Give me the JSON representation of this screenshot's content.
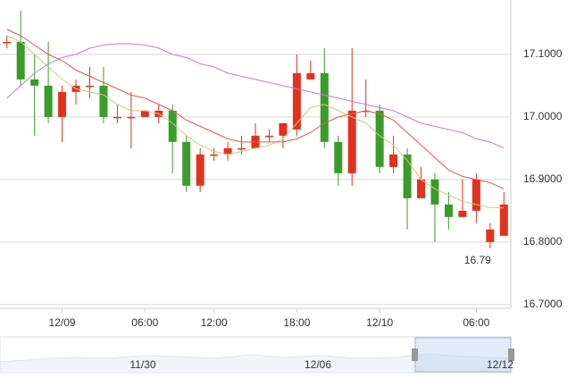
{
  "chart_data": {
    "type": "candlestick",
    "categories": [
      null,
      null,
      null,
      null,
      "12/09",
      null,
      null,
      null,
      null,
      null,
      "06:00",
      null,
      null,
      null,
      null,
      "12:00",
      null,
      null,
      null,
      null,
      null,
      "18:00",
      null,
      null,
      null,
      null,
      null,
      "12/10",
      null,
      null,
      null,
      null,
      null,
      null,
      "06:00",
      null,
      null
    ],
    "open": [
      17.12,
      17.12,
      17.06,
      17.05,
      17.0,
      17.04,
      17.05,
      17.05,
      17.0,
      17.0,
      17.0,
      17.0,
      17.01,
      16.96,
      16.89,
      16.94,
      16.94,
      16.95,
      16.95,
      16.97,
      16.97,
      16.98,
      17.06,
      17.07,
      16.96,
      16.91,
      17.01,
      17.01,
      16.92,
      16.94,
      16.87,
      16.9,
      16.86,
      16.84,
      16.85,
      16.8,
      16.81
    ],
    "high": [
      17.13,
      17.17,
      17.1,
      17.12,
      17.05,
      17.06,
      17.08,
      17.08,
      17.02,
      17.04,
      17.01,
      17.02,
      17.02,
      16.97,
      16.95,
      16.95,
      16.96,
      16.97,
      16.99,
      16.98,
      16.99,
      17.1,
      17.09,
      17.11,
      16.97,
      17.11,
      17.06,
      17.02,
      16.97,
      16.95,
      16.92,
      16.91,
      16.88,
      16.9,
      16.91,
      16.83,
      16.88
    ],
    "low": [
      17.11,
      17.05,
      16.97,
      16.99,
      16.96,
      17.02,
      17.03,
      16.99,
      16.99,
      16.95,
      17.0,
      16.99,
      16.91,
      16.88,
      16.88,
      16.93,
      16.93,
      16.94,
      16.95,
      16.96,
      16.95,
      16.97,
      17.06,
      16.95,
      16.89,
      16.89,
      17.0,
      16.91,
      16.91,
      16.82,
      16.87,
      16.8,
      16.82,
      16.84,
      16.83,
      16.79,
      16.81
    ],
    "close": [
      17.12,
      17.06,
      17.05,
      17.0,
      17.04,
      17.05,
      17.05,
      17.0,
      17.0,
      17.0,
      17.01,
      17.01,
      16.96,
      16.89,
      16.94,
      16.94,
      16.95,
      16.95,
      16.97,
      16.97,
      16.99,
      17.07,
      17.07,
      16.96,
      16.91,
      17.01,
      17.01,
      16.92,
      16.94,
      16.87,
      16.9,
      16.86,
      16.84,
      16.85,
      16.9,
      16.82,
      16.86
    ],
    "up_color": "#e0321e",
    "down_color": "#3a9c2a",
    "series": [
      {
        "color": "#c9cc7a",
        "values": [
          17.13,
          17.12,
          17.1,
          17.08,
          17.06,
          17.045,
          17.04,
          17.035,
          17.02,
          17.01,
          17.01,
          17.005,
          16.99,
          16.97,
          16.955,
          16.945,
          16.94,
          16.945,
          16.95,
          16.955,
          16.965,
          16.99,
          17.015,
          17.02,
          17.01,
          17.0,
          16.99,
          16.97,
          16.955,
          16.93,
          16.9,
          16.885,
          16.875,
          16.865,
          16.86,
          16.855,
          16.855
        ]
      },
      {
        "color": "#e8564f",
        "values": [
          17.14,
          17.13,
          17.115,
          17.1,
          17.09,
          17.075,
          17.065,
          17.055,
          17.045,
          17.035,
          17.03,
          17.02,
          17.01,
          16.995,
          16.985,
          16.975,
          16.965,
          16.96,
          16.96,
          16.96,
          16.96,
          16.965,
          16.975,
          16.99,
          17.0,
          17.005,
          17.01,
          17.005,
          16.995,
          16.975,
          16.955,
          16.935,
          16.915,
          16.905,
          16.9,
          16.895,
          16.885
        ]
      },
      {
        "color": "#c879d6",
        "values": [
          17.03,
          17.05,
          17.07,
          17.085,
          17.095,
          17.1,
          17.11,
          17.115,
          17.117,
          17.117,
          17.115,
          17.11,
          17.1,
          17.095,
          17.085,
          17.08,
          17.07,
          17.065,
          17.06,
          17.055,
          17.05,
          17.045,
          17.04,
          17.035,
          17.03,
          17.025,
          17.02,
          17.015,
          17.01,
          17.0,
          16.99,
          16.985,
          16.98,
          16.975,
          16.965,
          16.96,
          16.95
        ]
      }
    ],
    "min_label": "16.79",
    "ylim": [
      16.694,
      17.187
    ],
    "yticks": [
      {
        "value": 16.7,
        "label": "16.7000"
      },
      {
        "value": 16.8,
        "label": "16.8000"
      },
      {
        "value": 16.9,
        "label": "16.9000"
      },
      {
        "value": 17.0,
        "label": "17.0000"
      },
      {
        "value": 17.1,
        "label": "17.1000"
      }
    ],
    "grid": true,
    "navigator_labels": [
      "11/30",
      "12/06",
      "12/12"
    ]
  }
}
